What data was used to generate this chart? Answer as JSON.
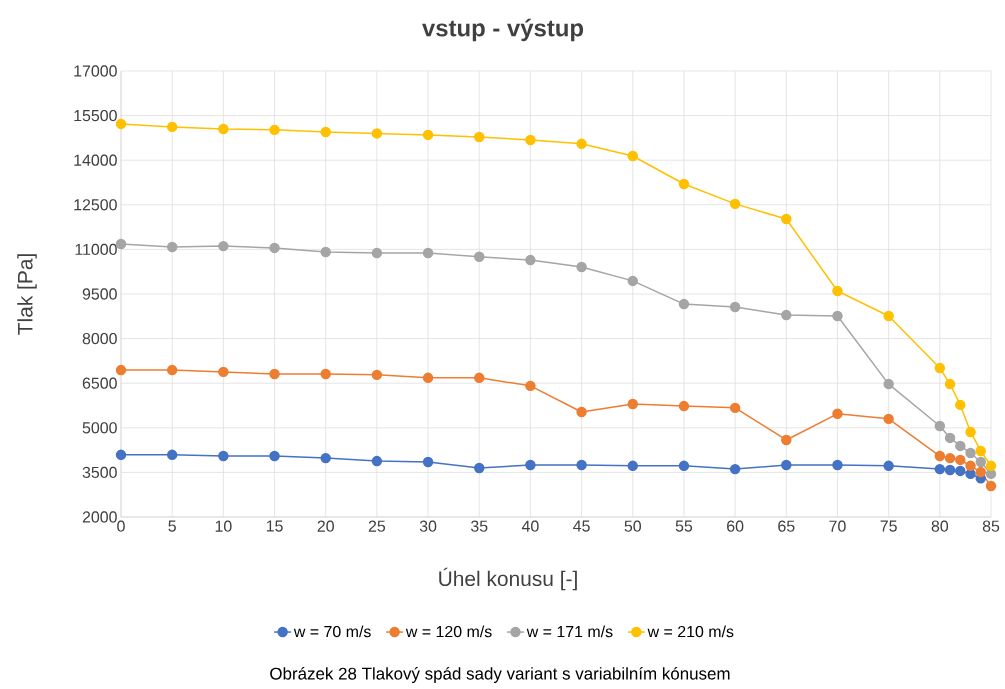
{
  "chart_data": {
    "type": "line",
    "title": "vstup - výstup",
    "xlabel": "Úhel konusu [-]",
    "ylabel": "Tlak [Pa]",
    "x": [
      0,
      5,
      10,
      15,
      20,
      25,
      30,
      35,
      40,
      45,
      50,
      55,
      60,
      65,
      70,
      75,
      80,
      81,
      82,
      83,
      84,
      85
    ],
    "series": [
      {
        "name": "w = 70 m/s",
        "color": "#4472c4",
        "values": [
          4090,
          4090,
          4050,
          4050,
          3980,
          3880,
          3850,
          3650,
          3750,
          3750,
          3720,
          3720,
          3610,
          3750,
          3750,
          3720,
          3610,
          3580,
          3550,
          3450,
          3300,
          null
        ]
      },
      {
        "name": "w = 120 m/s",
        "color": "#ed7d31",
        "values": [
          6940,
          6940,
          6880,
          6810,
          6810,
          6780,
          6680,
          6680,
          6410,
          5530,
          5800,
          5730,
          5670,
          4590,
          5470,
          5300,
          4050,
          3980,
          3920,
          3720,
          3510,
          3040
        ]
      },
      {
        "name": "w = 171 m/s",
        "color": "#a5a5a5",
        "values": [
          11180,
          11080,
          11110,
          11050,
          10910,
          10880,
          10880,
          10750,
          10640,
          10410,
          9940,
          9160,
          9060,
          8790,
          8760,
          6470,
          5060,
          4660,
          4390,
          4150,
          3850,
          3450
        ]
      },
      {
        "name": "w = 210 m/s",
        "color": "#ffc000",
        "values": [
          15220,
          15120,
          15050,
          15020,
          14950,
          14900,
          14850,
          14780,
          14680,
          14550,
          14140,
          13200,
          12530,
          12020,
          9600,
          8760,
          7010,
          6470,
          5770,
          4860,
          4220,
          3720
        ]
      }
    ],
    "xlim": [
      0,
      85
    ],
    "xticks": [
      0,
      5,
      10,
      15,
      20,
      25,
      30,
      35,
      40,
      45,
      50,
      55,
      60,
      65,
      70,
      75,
      80,
      85
    ],
    "ylim": [
      2000,
      17000
    ],
    "yticks": [
      2000,
      3500,
      5000,
      6500,
      8000,
      9500,
      11000,
      12500,
      14000,
      15500,
      17000
    ],
    "grid": true,
    "legend": "bottom",
    "marker": "circle",
    "line_style": "solid",
    "annotations": [
      "Obrázek 28 Tlakový spád sady variant s variabilním kónusem"
    ]
  }
}
